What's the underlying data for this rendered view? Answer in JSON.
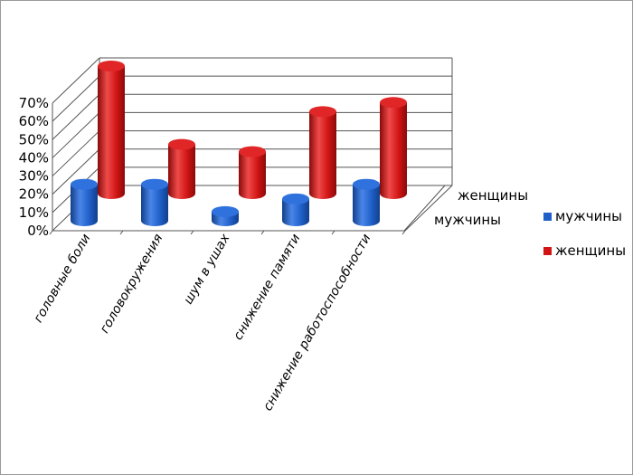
{
  "chart_data": {
    "type": "bar",
    "categories": [
      "головные боли",
      "головокружения",
      "шум в ушах",
      "снижение памяти",
      "снижение работоспособности"
    ],
    "series": [
      {
        "name": "мужчины",
        "values": [
          20,
          20,
          5,
          12,
          20
        ]
      },
      {
        "name": "женщины",
        "values": [
          70,
          27,
          23,
          45,
          50
        ]
      }
    ],
    "y_ticks": [
      "0%",
      "10%",
      "20%",
      "30%",
      "40%",
      "50%",
      "60%",
      "70%"
    ],
    "ylim": [
      0,
      70
    ],
    "legend_position": "right",
    "grid": true,
    "colors": {
      "мужчины": "#1f5fc8",
      "женщины": "#d11414"
    }
  }
}
